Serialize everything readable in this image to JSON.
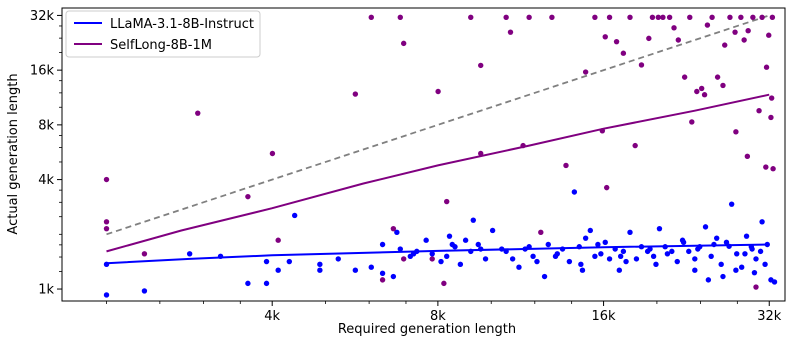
{
  "chart_data": {
    "type": "scatter",
    "xlabel": "Required generation length",
    "ylabel": "Actual generation length",
    "x_scale": "log2",
    "y_scale": "log2",
    "xlim": [
      1700,
      35000
    ],
    "ylim": [
      880,
      36000
    ],
    "x_ticks": [
      {
        "value": 4096,
        "label": "4k"
      },
      {
        "value": 8192,
        "label": "8k"
      },
      {
        "value": 16384,
        "label": "16k"
      },
      {
        "value": 32768,
        "label": "32k"
      }
    ],
    "y_ticks": [
      {
        "value": 1024,
        "label": "1k"
      },
      {
        "value": 4096,
        "label": "4k"
      },
      {
        "value": 8192,
        "label": "8k"
      },
      {
        "value": 16384,
        "label": "16k"
      },
      {
        "value": 32768,
        "label": "32k"
      }
    ],
    "grid": false,
    "legend_position": "top-left",
    "reference_line": {
      "style": "dashed",
      "color": "#808080",
      "points": [
        [
          2048,
          2048
        ],
        [
          32768,
          32768
        ]
      ]
    },
    "series": [
      {
        "name": "LLaMA-3.1-8B-Instruct",
        "color": "#0000ff",
        "fit": [
          [
            2048,
            1420
          ],
          [
            2900,
            1500
          ],
          [
            4096,
            1570
          ],
          [
            8192,
            1660
          ],
          [
            16384,
            1740
          ],
          [
            32768,
            1800
          ]
        ],
        "points": [
          [
            2048,
            950
          ],
          [
            2048,
            1400
          ],
          [
            2400,
            1000
          ],
          [
            2900,
            1600
          ],
          [
            3700,
            1100
          ],
          [
            4000,
            1450
          ],
          [
            4000,
            1100
          ],
          [
            4200,
            1300
          ],
          [
            4500,
            2600
          ],
          [
            5000,
            1400
          ],
          [
            5000,
            1300
          ],
          [
            5800,
            1300
          ],
          [
            6200,
            1350
          ],
          [
            6500,
            1250
          ],
          [
            6500,
            1800
          ],
          [
            6800,
            1200
          ],
          [
            7000,
            1700
          ],
          [
            7500,
            1650
          ],
          [
            7800,
            1900
          ],
          [
            8000,
            1600
          ],
          [
            8300,
            1450
          ],
          [
            8500,
            1550
          ],
          [
            8700,
            1800
          ],
          [
            9000,
            1400
          ],
          [
            9200,
            1900
          ],
          [
            9500,
            2450
          ],
          [
            9800,
            1700
          ],
          [
            10000,
            1500
          ],
          [
            10300,
            2150
          ],
          [
            10700,
            1700
          ],
          [
            11200,
            1500
          ],
          [
            11500,
            1350
          ],
          [
            11800,
            1700
          ],
          [
            12200,
            1550
          ],
          [
            12800,
            1200
          ],
          [
            13000,
            1800
          ],
          [
            13500,
            1600
          ],
          [
            13800,
            1700
          ],
          [
            14200,
            1450
          ],
          [
            14500,
            3500
          ],
          [
            14800,
            1750
          ],
          [
            15200,
            1950
          ],
          [
            15500,
            2150
          ],
          [
            15800,
            1550
          ],
          [
            16200,
            1600
          ],
          [
            16500,
            1850
          ],
          [
            16800,
            1500
          ],
          [
            17200,
            1700
          ],
          [
            17500,
            1300
          ],
          [
            17800,
            1650
          ],
          [
            18300,
            2100
          ],
          [
            18800,
            1500
          ],
          [
            19200,
            1750
          ],
          [
            19700,
            1650
          ],
          [
            20200,
            1550
          ],
          [
            20700,
            2200
          ],
          [
            21200,
            1750
          ],
          [
            21800,
            1650
          ],
          [
            22300,
            1450
          ],
          [
            22800,
            1900
          ],
          [
            23400,
            1650
          ],
          [
            24000,
            1500
          ],
          [
            24500,
            1750
          ],
          [
            25100,
            2250
          ],
          [
            25700,
            1550
          ],
          [
            26300,
            1950
          ],
          [
            26800,
            1400
          ],
          [
            27400,
            1850
          ],
          [
            28000,
            3000
          ],
          [
            28600,
            1600
          ],
          [
            29200,
            1350
          ],
          [
            29800,
            2000
          ],
          [
            30400,
            1750
          ],
          [
            31000,
            1500
          ],
          [
            31600,
            1650
          ],
          [
            32200,
            1400
          ],
          [
            32500,
            1800
          ],
          [
            33000,
            1150
          ],
          [
            33500,
            1120
          ],
          [
            31800,
            2400
          ],
          [
            30800,
            1260
          ],
          [
            27700,
            1760
          ],
          [
            26000,
            1800
          ],
          [
            24300,
            1700
          ],
          [
            22900,
            1850
          ],
          [
            21400,
            1600
          ],
          [
            19900,
            1700
          ],
          [
            17600,
            1550
          ],
          [
            16000,
            1800
          ],
          [
            14900,
            1400
          ],
          [
            13400,
            1550
          ],
          [
            12000,
            1750
          ],
          [
            10900,
            1650
          ],
          [
            9700,
            1800
          ],
          [
            8800,
            1750
          ],
          [
            7300,
            1550
          ],
          [
            6900,
            2100
          ],
          [
            5400,
            1500
          ],
          [
            4400,
            1450
          ],
          [
            3300,
            1550
          ],
          [
            28500,
            1300
          ],
          [
            27000,
            1200
          ],
          [
            25400,
            1150
          ],
          [
            24000,
            1300
          ],
          [
            20400,
            1400
          ],
          [
            18000,
            1450
          ],
          [
            15000,
            1300
          ],
          [
            12400,
            1450
          ],
          [
            9400,
            1650
          ],
          [
            8600,
            2000
          ],
          [
            7400,
            1600
          ],
          [
            29600,
            1600
          ],
          [
            30500,
            1700
          ]
        ]
      },
      {
        "name": "SelfLong-8B-1M",
        "color": "#800080",
        "fit": [
          [
            2048,
            1650
          ],
          [
            2800,
            2150
          ],
          [
            4096,
            2850
          ],
          [
            6000,
            3900
          ],
          [
            8192,
            4900
          ],
          [
            12000,
            6300
          ],
          [
            16384,
            7800
          ],
          [
            24000,
            9800
          ],
          [
            32768,
            12000
          ]
        ],
        "points": [
          [
            2048,
            4100
          ],
          [
            2048,
            2400
          ],
          [
            2048,
            2200
          ],
          [
            2400,
            1600
          ],
          [
            3000,
            9500
          ],
          [
            3700,
            3300
          ],
          [
            4100,
            5700
          ],
          [
            4200,
            1900
          ],
          [
            5800,
            12100
          ],
          [
            6200,
            32000
          ],
          [
            6500,
            1150
          ],
          [
            6800,
            2200
          ],
          [
            7000,
            32000
          ],
          [
            7100,
            23000
          ],
          [
            7100,
            1500
          ],
          [
            8000,
            1500
          ],
          [
            8200,
            12500
          ],
          [
            8400,
            1100
          ],
          [
            8500,
            3100
          ],
          [
            9400,
            32000
          ],
          [
            9800,
            17400
          ],
          [
            9800,
            5700
          ],
          [
            10900,
            32000
          ],
          [
            11100,
            26500
          ],
          [
            11700,
            6300
          ],
          [
            12000,
            32000
          ],
          [
            12600,
            2100
          ],
          [
            13200,
            32000
          ],
          [
            14000,
            4900
          ],
          [
            15200,
            16000
          ],
          [
            15800,
            32000
          ],
          [
            16300,
            7600
          ],
          [
            16500,
            25000
          ],
          [
            16600,
            3700
          ],
          [
            16800,
            32000
          ],
          [
            17300,
            23500
          ],
          [
            17800,
            20300
          ],
          [
            18300,
            32000
          ],
          [
            18700,
            6300
          ],
          [
            19200,
            17500
          ],
          [
            19800,
            24500
          ],
          [
            20100,
            32000
          ],
          [
            20600,
            32000
          ],
          [
            21000,
            32000
          ],
          [
            21600,
            32000
          ],
          [
            22000,
            28000
          ],
          [
            22400,
            24000
          ],
          [
            23000,
            15000
          ],
          [
            23500,
            32000
          ],
          [
            24200,
            12500
          ],
          [
            24700,
            13000
          ],
          [
            25300,
            29000
          ],
          [
            25800,
            32000
          ],
          [
            26400,
            15000
          ],
          [
            27200,
            22500
          ],
          [
            27800,
            32000
          ],
          [
            28500,
            7500
          ],
          [
            29100,
            32000
          ],
          [
            29500,
            24000
          ],
          [
            29900,
            5500
          ],
          [
            30600,
            32000
          ],
          [
            31400,
            9800
          ],
          [
            31800,
            32000
          ],
          [
            32300,
            4800
          ],
          [
            32400,
            17000
          ],
          [
            32700,
            25500
          ],
          [
            33100,
            11500
          ],
          [
            33300,
            4700
          ],
          [
            30000,
            27000
          ],
          [
            28400,
            26500
          ],
          [
            27000,
            13500
          ],
          [
            25000,
            12000
          ],
          [
            23700,
            8500
          ],
          [
            31000,
            1050
          ],
          [
            33000,
            9000
          ],
          [
            33200,
            32000
          ]
        ]
      }
    ]
  }
}
